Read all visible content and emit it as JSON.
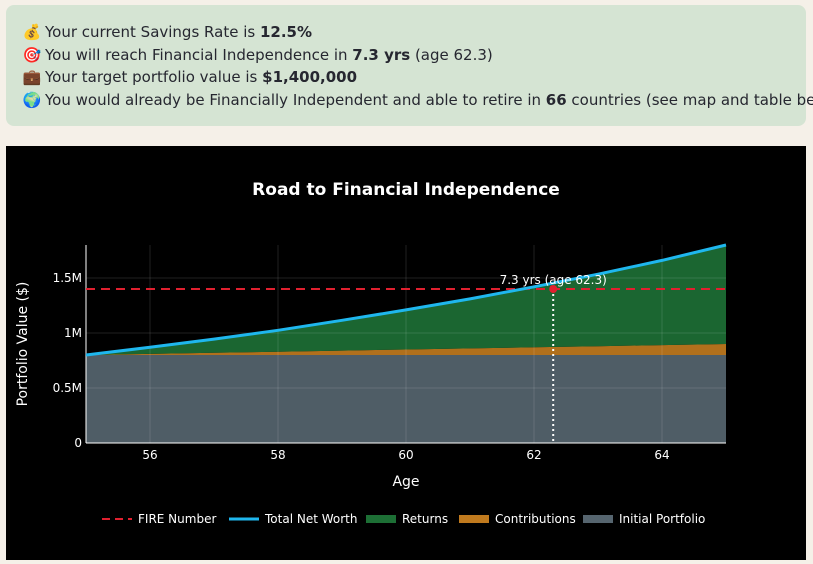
{
  "summary": {
    "line1": {
      "icon": "money-bag-icon",
      "glyph": "💰",
      "prefix": "Your current Savings Rate is ",
      "value": "12.5%"
    },
    "line2": {
      "icon": "target-icon",
      "glyph": "🎯",
      "prefix": "You will reach Financial Independence in ",
      "value": "7.3 yrs",
      "suffix": " (age 62.3)"
    },
    "line3": {
      "icon": "briefcase-icon",
      "glyph": "💼",
      "prefix": "Your target portfolio value is ",
      "value": "$1,400,000"
    },
    "line4": {
      "icon": "globe-icon",
      "glyph": "🌍",
      "prefix": "You would already be Financially Independent and able to retire in ",
      "value": "66",
      "suffix": " countries (see map and table below)"
    }
  },
  "colors": {
    "summary_bg": "#d5e4d3",
    "chart_bg": "#000000",
    "fire": "#e0202f",
    "net_worth": "#1fb7ee",
    "returns": "#1d6f35",
    "contributions": "#c07a1e",
    "initial": "#56656f"
  },
  "chart_data": {
    "type": "area",
    "title": "Road to Financial Independence",
    "xlabel": "Age",
    "ylabel": "Portfolio Value ($)",
    "xlim": [
      55,
      65
    ],
    "ylim": [
      0,
      1800000
    ],
    "x_ticks": [
      56,
      58,
      60,
      62,
      64
    ],
    "y_ticks": [
      0,
      500000,
      1000000,
      1500000
    ],
    "y_tick_labels": [
      "0",
      "0.5M",
      "1M",
      "1.5M"
    ],
    "x": [
      55,
      56,
      57,
      58,
      59,
      60,
      61,
      62,
      63,
      64,
      65
    ],
    "series": [
      {
        "name": "Initial Portfolio",
        "kind": "stack",
        "values": [
          800000,
          800000,
          800000,
          800000,
          800000,
          800000,
          800000,
          800000,
          800000,
          800000,
          800000
        ]
      },
      {
        "name": "Contributions",
        "kind": "stack",
        "values": [
          0,
          10000,
          20000,
          30000,
          40000,
          50000,
          60000,
          70000,
          80000,
          90000,
          100000
        ]
      },
      {
        "name": "Returns",
        "kind": "stack",
        "values": [
          0,
          60000,
          125000,
          195000,
          275000,
          360000,
          450000,
          550000,
          655000,
          770000,
          900000
        ]
      },
      {
        "name": "Total Net Worth",
        "kind": "line",
        "values": [
          800000,
          870000,
          945000,
          1025000,
          1115000,
          1210000,
          1310000,
          1420000,
          1535000,
          1660000,
          1800000
        ]
      },
      {
        "name": "FIRE Number",
        "kind": "hline",
        "value": 1400000
      }
    ],
    "legend": [
      "FIRE Number",
      "Total Net Worth",
      "Returns",
      "Contributions",
      "Initial Portfolio"
    ],
    "legend_position": "bottom",
    "annotation": {
      "text": "7.3 yrs (age 62.3)",
      "x": 62.3,
      "y": 1400000
    },
    "grid": true
  }
}
